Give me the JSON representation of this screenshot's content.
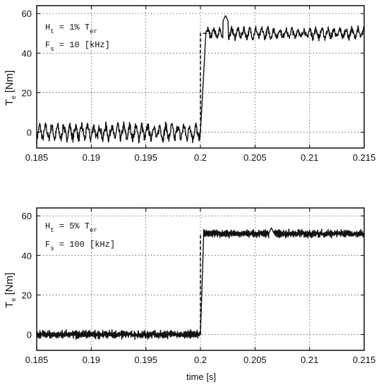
{
  "chart_data": [
    {
      "type": "line",
      "ylabel_main": "T",
      "ylabel_sub": "e",
      "ylabel_unit": "[Nm]",
      "xlabel": "",
      "xlim": [
        0.185,
        0.215
      ],
      "ylim": [
        -8,
        64
      ],
      "xticks": [
        0.185,
        0.19,
        0.195,
        0.2,
        0.205,
        0.21,
        0.215
      ],
      "xtick_labels": [
        "0.185",
        "0.19",
        "0.195",
        "0.2",
        "0.205",
        "0.21",
        "0.215"
      ],
      "yticks": [
        0,
        20,
        40,
        60
      ],
      "ytick_labels": [
        "0",
        "20",
        "40",
        "60"
      ],
      "grid": true,
      "annotation": {
        "line1_main": "H",
        "line1_sub": "t",
        "line1_rest": " = 1% T",
        "line1_sub2": "er",
        "line2_main": "F",
        "line2_sub": "s",
        "line2_rest": " = 10 [kHz]"
      },
      "reference": {
        "step_time": 0.2,
        "before": 0,
        "after": 50
      },
      "actual": {
        "before_mean": 0,
        "before_ripple": 7,
        "after_mean": 50,
        "after_ripple": 5,
        "rise_end": 0.2005,
        "ripple_period": 0.00055,
        "overshoot": {
          "x": 0.2023,
          "y": 59
        }
      }
    },
    {
      "type": "line",
      "ylabel_main": "T",
      "ylabel_sub": "e",
      "ylabel_unit": "[Nm]",
      "xlabel": "time [s]",
      "xlim": [
        0.185,
        0.215
      ],
      "ylim": [
        -8,
        64
      ],
      "xticks": [
        0.185,
        0.19,
        0.195,
        0.2,
        0.205,
        0.21,
        0.215
      ],
      "xtick_labels": [
        "0.185",
        "0.19",
        "0.195",
        "0.2",
        "0.205",
        "0.21",
        "0.215"
      ],
      "yticks": [
        0,
        20,
        40,
        60
      ],
      "ytick_labels": [
        "0",
        "20",
        "40",
        "60"
      ],
      "grid": true,
      "annotation": {
        "line1_main": "H",
        "line1_sub": "t",
        "line1_rest": " = 5% T",
        "line1_sub2": "er",
        "line2_main": "F",
        "line2_sub": "s",
        "line2_rest": " = 100 [kHz]"
      },
      "reference": {
        "step_time": 0.2,
        "before": 0,
        "after": 50
      },
      "actual": {
        "before_mean": 0,
        "before_ripple": 3,
        "after_mean": 51,
        "after_ripple": 3,
        "rise_end": 0.2003,
        "ripple_period": 0.00012,
        "overshoot": {
          "x": 0.2065,
          "y": 54
        }
      }
    }
  ]
}
